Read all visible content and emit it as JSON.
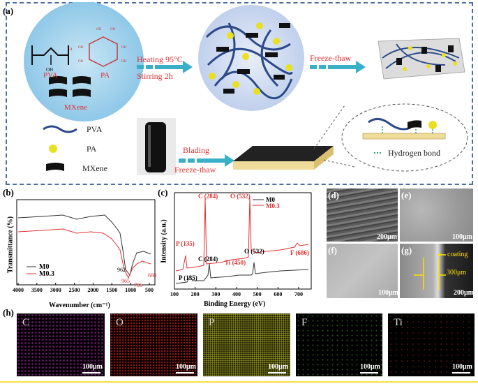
{
  "panel_a": {
    "label": "(a)",
    "pva_label": "PVA",
    "pa_label": "PA",
    "mxene_label": "MXene",
    "subscript_n": "n",
    "oh_label": "OH",
    "heating_label": "Heating  95°C",
    "stirring_label": "Stirring   2h",
    "freeze_thaw_top": "Freeze-thaw",
    "legend": {
      "pva": "PVA",
      "pa": "PA",
      "mxene": "MXene"
    },
    "blading_label": "Blading",
    "freeze_thaw_bottom": "Freeze-thaw",
    "hydrogen_bond": "Hydrogen bond",
    "colors": {
      "border": "#4a6fa5",
      "arrow": "#3ab0c8",
      "pva": "#2c4a8a",
      "pa": "#e8e020",
      "mxene": "#111111",
      "substrate": "#f0dc9a"
    }
  },
  "panel_b": {
    "label": "(b)",
    "chart_data": {
      "type": "line",
      "xlabel": "Wavenumber (cm⁻¹)",
      "ylabel": "Transmittance (%)",
      "xlim": [
        4000,
        500
      ],
      "x_ticks": [
        "4000",
        "3500",
        "3000",
        "2500",
        "2000",
        "1500",
        "1000",
        "500"
      ],
      "series": [
        {
          "name": "M0",
          "color": "#333333"
        },
        {
          "name": "M0.3",
          "color": "#e03030"
        }
      ],
      "annotations": [
        "962",
        "965",
        "786",
        "660"
      ]
    }
  },
  "panel_c": {
    "label": "(c)",
    "chart_data": {
      "type": "line",
      "xlabel": "Binding Energy (eV)",
      "ylabel": "Intensity (a.u.)",
      "xlim": [
        100,
        750
      ],
      "x_ticks": [
        "100",
        "200",
        "300",
        "400",
        "500",
        "600",
        "700"
      ],
      "series": [
        {
          "name": "M0",
          "color": "#333333"
        },
        {
          "name": "M0.3",
          "color": "#e03030"
        }
      ],
      "peak_labels_red": [
        "C (284)",
        "O (532)",
        "P (135)",
        "Ti (450)",
        "F (686)"
      ],
      "peak_labels_black": [
        "C (284)",
        "O (532)",
        "P (135)"
      ]
    }
  },
  "panel_sem": {
    "d": {
      "label": "(d)",
      "scale": "200μm"
    },
    "e": {
      "label": "(e)",
      "scale": "100μm"
    },
    "f": {
      "label": "(f)",
      "scale": "100μm"
    },
    "g": {
      "label": "(g)",
      "scale": "200μm",
      "coating": "coating",
      "thickness": "300μm"
    }
  },
  "panel_h": {
    "label": "(h)",
    "maps": [
      {
        "element": "C",
        "scale": "100μm",
        "color": "#c040c0"
      },
      {
        "element": "O",
        "scale": "100μm",
        "color": "#d02020"
      },
      {
        "element": "P",
        "scale": "100μm",
        "color": "#c0c020"
      },
      {
        "element": "F",
        "scale": "100μm",
        "color": "#60c040"
      },
      {
        "element": "Ti",
        "scale": "100μm",
        "color": "#c02020"
      }
    ]
  }
}
